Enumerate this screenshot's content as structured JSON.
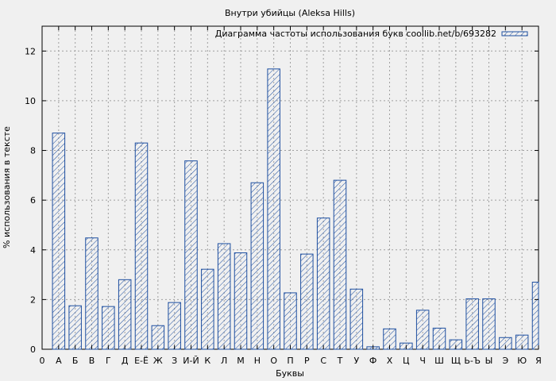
{
  "chart_data": {
    "type": "bar",
    "title": "Внутри убийцы (Aleksa Hills)",
    "xlabel": "Буквы",
    "ylabel": "% использования в тексте",
    "legend": "Диаграмма частоты использования букв coollib.net/b/693282",
    "legend_position": "top-right",
    "grid": true,
    "ylim": [
      0,
      13
    ],
    "yticks": [
      0,
      2,
      4,
      6,
      8,
      10,
      12
    ],
    "x_tick_labels": [
      "0",
      "А",
      "Б",
      "В",
      "Г",
      "Д",
      "Е-Ё",
      "Ж",
      "З",
      "И-Й",
      "К",
      "Л",
      "М",
      "Н",
      "О",
      "П",
      "Р",
      "С",
      "Т",
      "У",
      "Ф",
      "Х",
      "Ц",
      "Ч",
      "Ш",
      "Щ",
      "Ь-Ъ",
      "Ы",
      "Э",
      "Ю",
      "Я"
    ],
    "categories": [
      "А",
      "Б",
      "В",
      "Г",
      "Д",
      "Е-Ё",
      "Ж",
      "З",
      "И-Й",
      "К",
      "Л",
      "М",
      "Н",
      "О",
      "П",
      "Р",
      "С",
      "Т",
      "У",
      "Ф",
      "Х",
      "Ц",
      "Ч",
      "Ш",
      "Щ",
      "Ь-Ъ",
      "Ы",
      "Э",
      "Ю",
      "Я"
    ],
    "values": [
      8.7,
      1.75,
      4.48,
      1.72,
      2.8,
      8.3,
      0.95,
      1.88,
      7.58,
      3.22,
      4.25,
      3.88,
      6.7,
      11.28,
      2.27,
      3.83,
      5.28,
      6.8,
      2.42,
      0.1,
      0.82,
      0.25,
      1.57,
      0.85,
      0.38,
      2.03,
      2.03,
      0.47,
      0.57,
      2.7
    ],
    "colors": {
      "bar": "#1e4fa0",
      "grid": "#a0a0a0",
      "background": "#f0f0f0"
    }
  }
}
